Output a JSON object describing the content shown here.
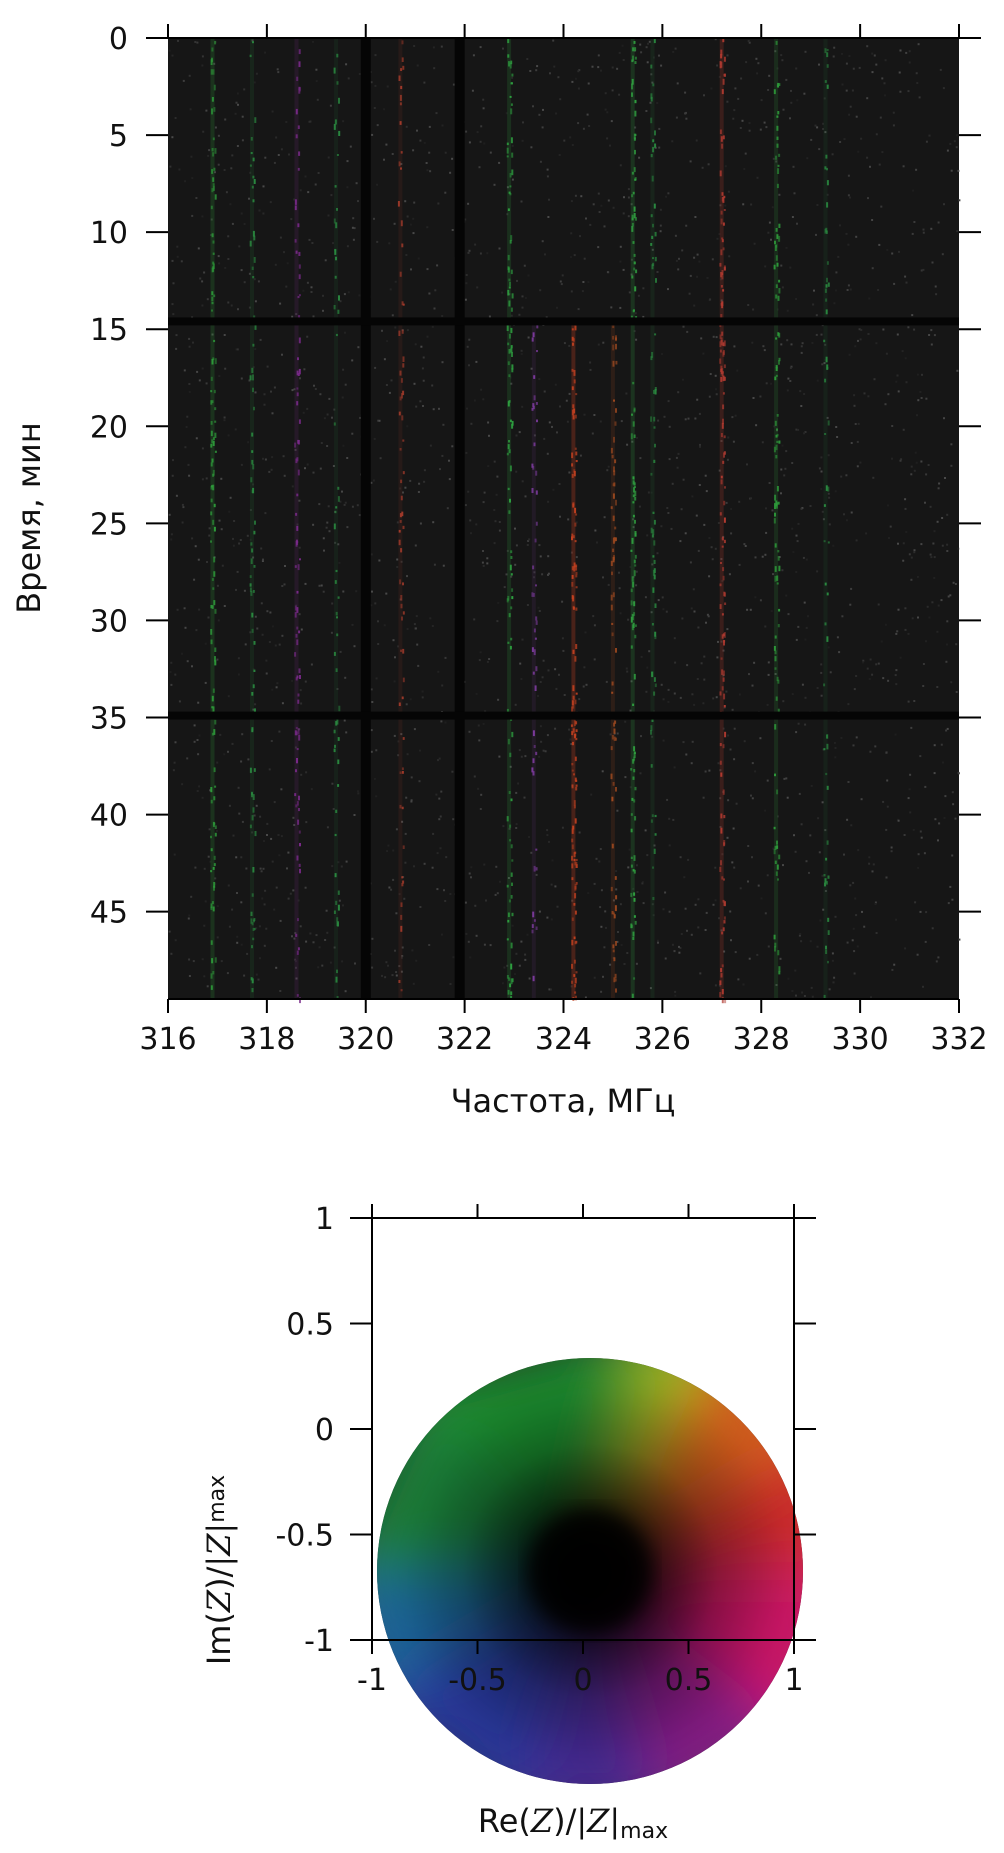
{
  "chart_data": [
    {
      "type": "heatmap",
      "xlabel": "Частота, МГц",
      "ylabel": "Время, мин",
      "xlim": [
        316,
        332
      ],
      "ylim": [
        0,
        49.5
      ],
      "y_axis_inverted": true,
      "x_ticks": [
        "316",
        "318",
        "320",
        "322",
        "324",
        "326",
        "328",
        "330",
        "332"
      ],
      "y_ticks": [
        "0",
        "5",
        "10",
        "15",
        "20",
        "25",
        "30",
        "35",
        "40",
        "45"
      ],
      "background_color": "#161616",
      "gap_lines": {
        "frequency_mhz": [
          320.0,
          321.9
        ],
        "time_min": [
          14.6,
          34.9
        ]
      },
      "emission_lines": [
        {
          "frequency_mhz": 316.9,
          "t_range": [
            0,
            49.5
          ],
          "color": "#2e9a3a",
          "intensity": 0.6
        },
        {
          "frequency_mhz": 317.7,
          "t_range": [
            0,
            49.5
          ],
          "color": "#2a8a40",
          "intensity": 0.4
        },
        {
          "frequency_mhz": 318.6,
          "t_range": [
            0,
            49.5
          ],
          "color": "#7a2a8a",
          "intensity": 0.45
        },
        {
          "frequency_mhz": 319.4,
          "t_range": [
            0,
            49.5
          ],
          "color": "#2a8a40",
          "intensity": 0.3
        },
        {
          "frequency_mhz": 320.7,
          "t_range": [
            0,
            49.5
          ],
          "color": "#a03a2a",
          "intensity": 0.35
        },
        {
          "frequency_mhz": 322.9,
          "t_range": [
            0,
            49.5
          ],
          "color": "#2ea040",
          "intensity": 0.55
        },
        {
          "frequency_mhz": 323.4,
          "t_range": [
            14.6,
            49.5
          ],
          "color": "#7a3a9a",
          "intensity": 0.35
        },
        {
          "frequency_mhz": 324.2,
          "t_range": [
            14.6,
            49.5
          ],
          "color": "#c04020",
          "intensity": 0.85
        },
        {
          "frequency_mhz": 325.0,
          "t_range": [
            14.6,
            49.5
          ],
          "color": "#a04a20",
          "intensity": 0.5
        },
        {
          "frequency_mhz": 325.4,
          "t_range": [
            0,
            49.5
          ],
          "color": "#30a040",
          "intensity": 0.6
        },
        {
          "frequency_mhz": 325.8,
          "t_range": [
            0,
            49.5
          ],
          "color": "#2a8a40",
          "intensity": 0.35
        },
        {
          "frequency_mhz": 327.2,
          "t_range": [
            0,
            49.5
          ],
          "color": "#b03a30",
          "intensity": 0.7
        },
        {
          "frequency_mhz": 328.3,
          "t_range": [
            0,
            49.5
          ],
          "color": "#2e9a3a",
          "intensity": 0.5
        },
        {
          "frequency_mhz": 329.3,
          "t_range": [
            0,
            49.5
          ],
          "color": "#2a8a40",
          "intensity": 0.3
        }
      ]
    },
    {
      "type": "heatmap",
      "xlabel": "Re(Z)/|Z|max",
      "ylabel": "Im(Z)/|Z|max",
      "xlim": [
        -1,
        1
      ],
      "ylim": [
        -1,
        1
      ],
      "x_ticks": [
        "-1",
        "-0.5",
        "0",
        "0.5",
        "1"
      ],
      "y_ticks": [
        "1",
        "0.5",
        "0",
        "-0.5",
        "-1"
      ],
      "colormap": "complex phase to hue, magnitude to brightness",
      "center_color": "#000000"
    }
  ],
  "top_chart": {
    "xlabel": "Частота, МГц",
    "ylabel": "Время, мин",
    "x_ticks": [
      "316",
      "318",
      "320",
      "322",
      "324",
      "326",
      "328",
      "330",
      "332"
    ],
    "y_ticks": [
      "0",
      "5",
      "10",
      "15",
      "20",
      "25",
      "30",
      "35",
      "40",
      "45"
    ]
  },
  "bottom_chart": {
    "xlabel_re": "Re(",
    "xlabel_z": "Z",
    "xlabel_mid": ")/",
    "xlabel_abs": "|Z|",
    "xlabel_sub": "max",
    "ylabel_im": "Im(",
    "ylabel_z": "Z",
    "ylabel_mid": ")/",
    "ylabel_abs": "|Z|",
    "ylabel_sub": "max",
    "x_ticks": [
      "-1",
      "-0.5",
      "0",
      "0.5",
      "1"
    ],
    "y_ticks": [
      "1",
      "0.5",
      "0",
      "-0.5",
      "-1"
    ]
  }
}
